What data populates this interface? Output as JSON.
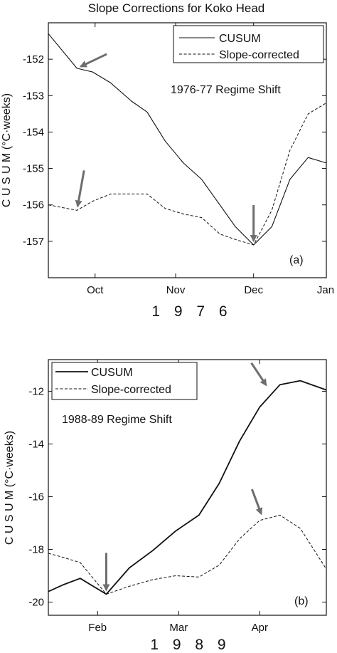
{
  "chart_data": [
    {
      "type": "line",
      "title": "Slope Corrections for Koko Head",
      "xlabel": "1 9 7 6",
      "ylabel": "C U S U M (°C·weeks)",
      "panel_label": "(a)",
      "annotation": "1976-77 Regime Shift",
      "xlim": [
        0,
        107
      ],
      "ylim": [
        -158,
        -151
      ],
      "x_ticks": [
        {
          "value": 18,
          "label": "Oct"
        },
        {
          "value": 49,
          "label": "Nov"
        },
        {
          "value": 79,
          "label": "Dec"
        },
        {
          "value": 110,
          "label": "Jan"
        }
      ],
      "y_ticks": [
        -157,
        -156,
        -155,
        -154,
        -153,
        -152
      ],
      "grid": false,
      "legend_position": "top-right",
      "series": [
        {
          "name": "CUSUM",
          "style": "solid",
          "x": [
            0,
            11,
            17,
            24,
            32,
            38,
            45,
            52,
            59,
            66,
            72,
            79,
            86,
            93,
            100,
            107
          ],
          "y": [
            -151.3,
            -152.25,
            -152.35,
            -152.65,
            -153.15,
            -153.45,
            -154.25,
            -154.85,
            -155.3,
            -156.0,
            -156.6,
            -157.1,
            -156.6,
            -155.3,
            -154.7,
            -154.85
          ]
        },
        {
          "name": "Slope-corrected",
          "style": "dashed",
          "x": [
            0,
            11,
            17,
            24,
            32,
            38,
            45,
            52,
            59,
            66,
            72,
            79,
            86,
            93,
            100,
            107
          ],
          "y": [
            -156.0,
            -156.15,
            -155.9,
            -155.7,
            -155.7,
            -155.7,
            -156.1,
            -156.25,
            -156.35,
            -156.8,
            -156.95,
            -157.1,
            -156.15,
            -154.5,
            -153.5,
            -153.2
          ]
        }
      ],
      "arrow_targets": [
        {
          "x": 11,
          "y": -152.25
        },
        {
          "x": 11,
          "y": -156.15
        },
        {
          "x": 79,
          "y": -157.1
        }
      ]
    },
    {
      "type": "line",
      "title": "",
      "xlabel": "1 9 8 9",
      "ylabel": "C U S U M (°C·weeks)",
      "panel_label": "(b)",
      "annotation": "1988-89 Regime Shift",
      "xlim": [
        0,
        96
      ],
      "ylim": [
        -20.5,
        -10.8
      ],
      "x_ticks": [
        {
          "value": 17,
          "label": "Feb"
        },
        {
          "value": 45,
          "label": "Mar"
        },
        {
          "value": 73,
          "label": "Apr"
        }
      ],
      "y_ticks": [
        -20,
        -18,
        -16,
        -14,
        -12
      ],
      "grid": false,
      "legend_position": "top-left",
      "series": [
        {
          "name": "CUSUM",
          "style": "solid",
          "x": [
            0,
            5,
            11,
            20,
            28,
            36,
            44,
            52,
            59,
            66,
            73,
            80,
            87,
            96
          ],
          "y": [
            -19.6,
            -19.35,
            -19.1,
            -19.7,
            -18.7,
            -18.05,
            -17.3,
            -16.7,
            -15.5,
            -13.9,
            -12.6,
            -11.75,
            -11.6,
            -11.95
          ]
        },
        {
          "name": "Slope-corrected",
          "style": "dashed",
          "x": [
            0,
            5,
            11,
            20,
            28,
            36,
            44,
            52,
            59,
            66,
            73,
            80,
            87,
            96
          ],
          "y": [
            -18.15,
            -18.3,
            -18.5,
            -19.7,
            -19.4,
            -19.15,
            -19.0,
            -19.05,
            -18.6,
            -17.6,
            -16.9,
            -16.7,
            -17.2,
            -18.75
          ]
        }
      ],
      "arrow_targets": [
        {
          "x": 20,
          "y": -19.7
        },
        {
          "x": 76,
          "y": -11.9
        },
        {
          "x": 74,
          "y": -16.8
        }
      ]
    }
  ],
  "colors": {
    "background": "#ffffff",
    "axes": "#111111",
    "line": "#111111",
    "arrow": "#6e6e6e"
  }
}
